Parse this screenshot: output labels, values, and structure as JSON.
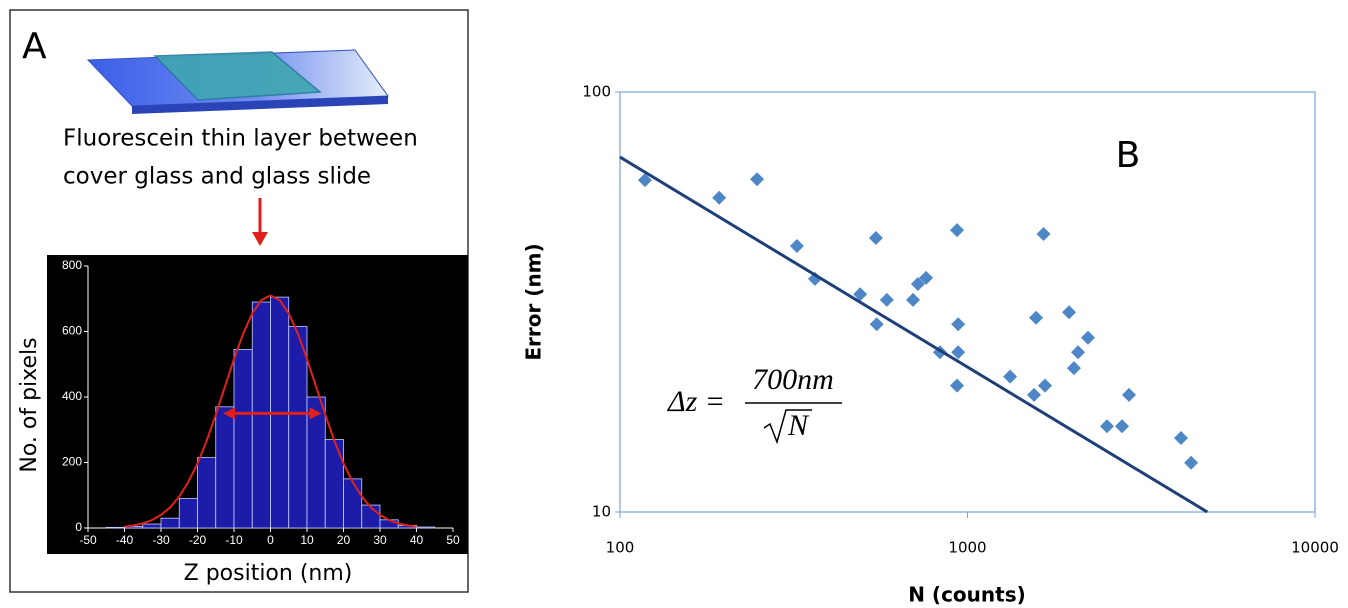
{
  "chart_data": [
    {
      "type": "histogram",
      "panel_label": "A",
      "caption": [
        "Fluorescein thin layer between",
        "cover glass and glass slide"
      ],
      "xlabel": "Z position (nm)",
      "ylabel": "No. of pixels",
      "bins": [
        -45,
        -40,
        -35,
        -30,
        -25,
        -20,
        -15,
        -10,
        -5,
        0,
        5,
        10,
        15,
        20,
        25,
        30,
        35,
        40,
        45
      ],
      "values": [
        2,
        5,
        12,
        30,
        90,
        215,
        370,
        545,
        690,
        705,
        615,
        400,
        270,
        150,
        70,
        25,
        8,
        3
      ],
      "color": "#1c1ca8",
      "fit": {
        "x": [
          -40,
          -37.5,
          -35,
          -32.5,
          -30,
          -27.5,
          -25,
          -22.5,
          -20,
          -17.5,
          -15,
          -12.5,
          -10,
          -7.5,
          -5,
          -2.5,
          0,
          2.5,
          5,
          7.5,
          10,
          12.5,
          15,
          17.5,
          20,
          22.5,
          25,
          27.5,
          30,
          32.5,
          35,
          37.5,
          40
        ],
        "values": [
          4,
          8,
          14,
          24,
          40,
          63,
          96,
          141,
          197,
          266,
          346,
          431,
          516,
          593,
          655,
          696,
          710,
          696,
          655,
          593,
          516,
          431,
          346,
          266,
          197,
          141,
          96,
          63,
          40,
          24,
          14,
          8,
          4
        ],
        "color": "#e0201b"
      },
      "arrow": {
        "x": [
          -13,
          14
        ],
        "y": 350,
        "color": "#e0201b"
      },
      "xlim": [
        -50,
        50
      ],
      "xticks": [
        -50,
        -40,
        -30,
        -20,
        -10,
        0,
        10,
        20,
        30,
        40,
        50
      ],
      "ylim": [
        0,
        800
      ],
      "yticks": [
        0,
        200,
        400,
        600,
        800
      ]
    },
    {
      "type": "scatter",
      "panel_label": "B",
      "xlabel": "N (counts)",
      "ylabel": "Error (nm)",
      "xscale": "log",
      "yscale": "log",
      "xlim": [
        100,
        10000
      ],
      "xticks": [
        100,
        1000,
        10000
      ],
      "ylim": [
        10,
        100
      ],
      "yticks": [
        10,
        100
      ],
      "annotation": {
        "lhs": "Δz =",
        "numerator": "700nm",
        "radicand": "N"
      },
      "series": [
        {
          "type": "scatter",
          "color": "#4f86c6",
          "x": [
            118,
            193,
            248,
            323,
            364,
            491,
            545,
            548,
            586,
            697,
            720,
            760,
            833,
            933,
            940,
            940,
            933,
            1326,
            1554,
            1575,
            1671,
            1655,
            1960,
            2025,
            2080,
            2222,
            2520,
            2784,
            2916,
            4115,
            4400
          ],
          "values": [
            61.7,
            56,
            62,
            43,
            35.9,
            33,
            44.9,
            28,
            32,
            32,
            34.9,
            36.1,
            24,
            46.9,
            28,
            24,
            20,
            21,
            19,
            29,
            20,
            45.9,
            29.9,
            22,
            24,
            26,
            16,
            16,
            19,
            15,
            13.1
          ]
        },
        {
          "type": "line",
          "color": "#1f3f7a",
          "x": [
            100,
            4900
          ],
          "values": [
            70,
            10
          ]
        }
      ]
    }
  ]
}
